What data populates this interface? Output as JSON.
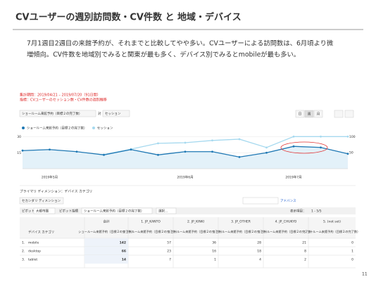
{
  "title": "CVユーザーの週別訪問数・CV件数 と 地域・デバイス",
  "body": [
    "7月1週目2週目の来館予約が、それまでと比較してやや多い。CVユーザーによる訪問数は、6月頃より微",
    "増傾向。CV件数を地域別でみると関東が最も多く、デバイス別でみるとmobileが最も多い。"
  ],
  "screenshot": {
    "period": "集計期間：2019/04/21 – 2019/07/20（91日間）",
    "metric": "指標：CVユーザーのセッション数・CV件数の週別推移",
    "metric_select": "ショールーム来館予約（目標２の完了数）",
    "vs": "対",
    "metric2_select": "セッション",
    "period_buttons": [
      "日",
      "週",
      "月"
    ],
    "dimension": "プライマリ ディメンション：デバイス カテゴリ",
    "secondary": "セカンダリ ディメンション",
    "advanced": "アドバンス",
    "pivot": "ピボット",
    "pivot_dim": "大都市圏",
    "pivot_metric_label": "ピボット指標",
    "pivot_metric": "ショールーム来館予約（目標２の完了数）",
    "select": "選択...",
    "rows_shown": "表示項目：",
    "range": "1 - 5/5"
  },
  "chart_data": {
    "type": "line",
    "categories": [
      null,
      "2019年5月",
      null,
      null,
      null,
      null,
      "2019年6月",
      null,
      null,
      null,
      "2019年7月",
      null,
      null
    ],
    "series": [
      {
        "name": "ショールーム来館予約（目標２の完了数）",
        "color": "#1f78b4",
        "values": [
          17,
          18,
          16,
          13,
          18,
          13,
          16,
          16,
          11,
          15,
          21,
          20,
          14
        ]
      },
      {
        "name": "セッション",
        "color": "#a6d9ef",
        "axis": "y2",
        "values": [
          57,
          48,
          48,
          44,
          61,
          79,
          81,
          88,
          92,
          66,
          100,
          100,
          100
        ]
      }
    ],
    "ylim": [
      0,
      35
    ],
    "yticks": [
      15,
      30
    ],
    "y2lim": [
      0,
      116
    ],
    "y2ticks": [
      50,
      100
    ],
    "grid": true
  },
  "table": {
    "total": "合計",
    "columns": [
      "1. JP_KANTO",
      "2. JP_KINKI",
      "3. JP_OTHER",
      "4. JP_CHUKYO",
      "5. (not set)"
    ],
    "row_header": "デバイス カテゴリ",
    "metric_header": "ショールーム来館予約（目標２の完了数）",
    "rows": [
      {
        "index": "1.",
        "name": "mobile",
        "values": [
          142,
          57,
          36,
          28,
          21,
          0
        ]
      },
      {
        "index": "2.",
        "name": "desktop",
        "values": [
          66,
          23,
          16,
          18,
          8,
          1
        ]
      },
      {
        "index": "3.",
        "name": "tablet",
        "values": [
          14,
          7,
          1,
          4,
          2,
          0
        ]
      }
    ]
  },
  "page_number": "11"
}
